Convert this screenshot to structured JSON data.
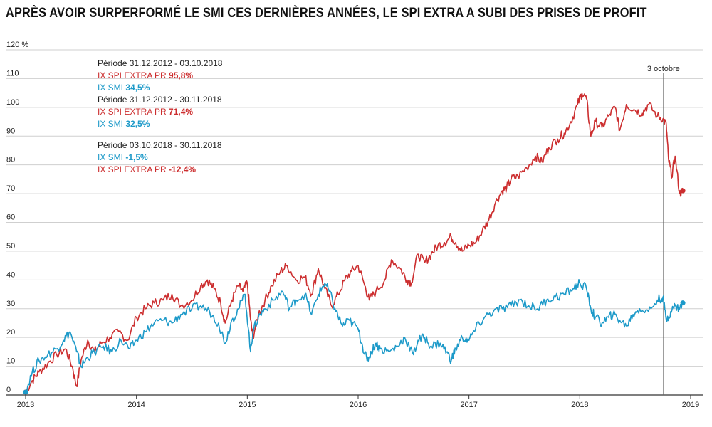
{
  "title": "APRÈS AVOIR SURPERFORMÉ LE SMI CES DERNIÈRES ANNÉES, LE SPI EXTRA A SUBI DES PRISES DE PROFIT",
  "colors": {
    "spi": "#cc2e2f",
    "smi": "#1d9ac9",
    "grid": "#cfcfcf",
    "axis": "#333333",
    "event": "#666666"
  },
  "chart_data": {
    "type": "line",
    "title": "APRÈS AVOIR SURPERFORMÉ LE SMI CES DERNIÈRES ANNÉES, LE SPI EXTRA A SUBI DES PRISES DE PROFIT",
    "xlabel": "",
    "ylabel": "%",
    "ylim": [
      0,
      120
    ],
    "xlim": [
      2013,
      2019
    ],
    "y_ticks": [
      "0",
      "10",
      "20",
      "30",
      "40",
      "50",
      "60",
      "70",
      "80",
      "90",
      "100",
      "110",
      "120 %"
    ],
    "y_tick_values": [
      0,
      10,
      20,
      30,
      40,
      50,
      60,
      70,
      80,
      90,
      100,
      110,
      120
    ],
    "x_ticks": [
      "2013",
      "2014",
      "2015",
      "2016",
      "2017",
      "2018",
      "2019"
    ],
    "x_tick_values": [
      2013,
      2014,
      2015,
      2016,
      2017,
      2018,
      2019
    ],
    "event": {
      "label": "3 octobre",
      "x": 2018.755
    },
    "series": [
      {
        "name": "IX SPI EXTRA PR",
        "color": "#cc2e2f",
        "x": [
          2013.0,
          2013.06,
          2013.12,
          2013.2,
          2013.28,
          2013.36,
          2013.42,
          2013.46,
          2013.5,
          2013.56,
          2013.62,
          2013.68,
          2013.76,
          2013.84,
          2013.92,
          2014.0,
          2014.08,
          2014.16,
          2014.24,
          2014.32,
          2014.4,
          2014.5,
          2014.58,
          2014.64,
          2014.7,
          2014.76,
          2014.8,
          2014.86,
          2014.92,
          2014.96,
          2015.0,
          2015.03,
          2015.05,
          2015.1,
          2015.16,
          2015.22,
          2015.3,
          2015.36,
          2015.44,
          2015.52,
          2015.58,
          2015.64,
          2015.7,
          2015.76,
          2015.82,
          2015.88,
          2015.94,
          2016.0,
          2016.06,
          2016.1,
          2016.16,
          2016.24,
          2016.3,
          2016.38,
          2016.44,
          2016.48,
          2016.54,
          2016.6,
          2016.66,
          2016.72,
          2016.78,
          2016.84,
          2016.88,
          2016.94,
          2017.0,
          2017.06,
          2017.12,
          2017.18,
          2017.24,
          2017.3,
          2017.34,
          2017.38,
          2017.44,
          2017.52,
          2017.6,
          2017.66,
          2017.72,
          2017.8,
          2017.86,
          2017.92,
          2017.98,
          2018.02,
          2018.06,
          2018.1,
          2018.14,
          2018.2,
          2018.26,
          2018.32,
          2018.36,
          2018.42,
          2018.5,
          2018.56,
          2018.62,
          2018.7,
          2018.75,
          2018.78,
          2018.8,
          2018.83,
          2018.86,
          2018.9,
          2018.93
        ],
        "values": [
          1,
          5,
          8,
          11,
          14,
          16,
          10,
          3,
          12,
          19,
          15,
          18,
          20,
          22,
          19,
          27,
          30,
          32,
          33,
          35,
          31,
          33,
          38,
          40,
          37,
          32,
          25,
          33,
          38,
          36,
          39,
          26,
          20,
          28,
          33,
          38,
          43,
          45,
          40,
          41,
          35,
          44,
          37,
          31,
          35,
          40,
          43,
          45,
          38,
          33,
          36,
          40,
          47,
          44,
          40,
          39,
          49,
          46,
          49,
          52,
          53,
          55,
          53,
          50,
          52,
          53,
          57,
          61,
          67,
          71,
          72,
          75,
          76,
          79,
          83,
          81,
          86,
          89,
          91,
          95,
          101,
          105,
          103,
          90,
          95,
          93,
          97,
          100,
          92,
          101,
          99,
          98,
          101,
          97,
          96,
          94,
          82,
          76,
          83,
          70,
          71
        ]
      },
      {
        "name": "IX SMI",
        "color": "#1d9ac9",
        "x": [
          2013.0,
          2013.06,
          2013.12,
          2013.2,
          2013.28,
          2013.34,
          2013.4,
          2013.46,
          2013.5,
          2013.56,
          2013.62,
          2013.7,
          2013.78,
          2013.86,
          2013.94,
          2014.0,
          2014.08,
          2014.16,
          2014.24,
          2014.32,
          2014.4,
          2014.5,
          2014.58,
          2014.66,
          2014.74,
          2014.8,
          2014.86,
          2014.92,
          2014.98,
          2015.03,
          2015.05,
          2015.1,
          2015.16,
          2015.24,
          2015.32,
          2015.38,
          2015.44,
          2015.52,
          2015.58,
          2015.64,
          2015.7,
          2015.74,
          2015.8,
          2015.86,
          2015.92,
          2016.0,
          2016.04,
          2016.08,
          2016.12,
          2016.16,
          2016.2,
          2016.28,
          2016.36,
          2016.42,
          2016.5,
          2016.54,
          2016.6,
          2016.66,
          2016.74,
          2016.8,
          2016.84,
          2016.88,
          2016.94,
          2017.0,
          2017.06,
          2017.14,
          2017.22,
          2017.3,
          2017.38,
          2017.46,
          2017.54,
          2017.62,
          2017.7,
          2017.78,
          2017.86,
          2017.94,
          2018.0,
          2018.06,
          2018.1,
          2018.14,
          2018.2,
          2018.26,
          2018.3,
          2018.36,
          2018.42,
          2018.48,
          2018.54,
          2018.62,
          2018.7,
          2018.75,
          2018.78,
          2018.82,
          2018.86,
          2018.9,
          2018.93
        ],
        "values": [
          1,
          8,
          12,
          14,
          16,
          19,
          22,
          15,
          10,
          13,
          15,
          17,
          15,
          19,
          16,
          19,
          22,
          25,
          26,
          25,
          28,
          30,
          31,
          29,
          25,
          18,
          26,
          30,
          35,
          15,
          22,
          27,
          30,
          33,
          36,
          30,
          33,
          35,
          28,
          35,
          39,
          36,
          29,
          24,
          26,
          23,
          17,
          12,
          15,
          18,
          16,
          15,
          17,
          20,
          14,
          19,
          20,
          17,
          18,
          15,
          12,
          16,
          20,
          19,
          23,
          27,
          29,
          30,
          31,
          33,
          31,
          30,
          33,
          34,
          35,
          37,
          39,
          37,
          30,
          27,
          25,
          27,
          28,
          26,
          24,
          28,
          30,
          29,
          33,
          34,
          26,
          29,
          31,
          30,
          32
        ]
      }
    ],
    "annotations": [
      {
        "period": "Période 31.12.2012 - 03.10.2018",
        "lines": [
          {
            "label": "IX SPI EXTRA PR ",
            "value": "95,8%",
            "series": "spi"
          },
          {
            "label": "IX SMI ",
            "value": "34,5%",
            "series": "smi"
          }
        ]
      },
      {
        "period": "Période 31.12.2012 - 30.11.2018",
        "lines": [
          {
            "label": "IX SPI EXTRA PR ",
            "value": "71,4%",
            "series": "spi"
          },
          {
            "label": "IX SMI ",
            "value": "32,5%",
            "series": "smi"
          }
        ]
      },
      {
        "period": "Période 03.10.2018 - 30.11.2018",
        "lines": [
          {
            "label": "IX SMI ",
            "value": "-1,5%",
            "series": "smi"
          },
          {
            "label": "IX SPI EXTRA PR ",
            "value": "-12,4%",
            "series": "spi"
          }
        ]
      }
    ]
  }
}
